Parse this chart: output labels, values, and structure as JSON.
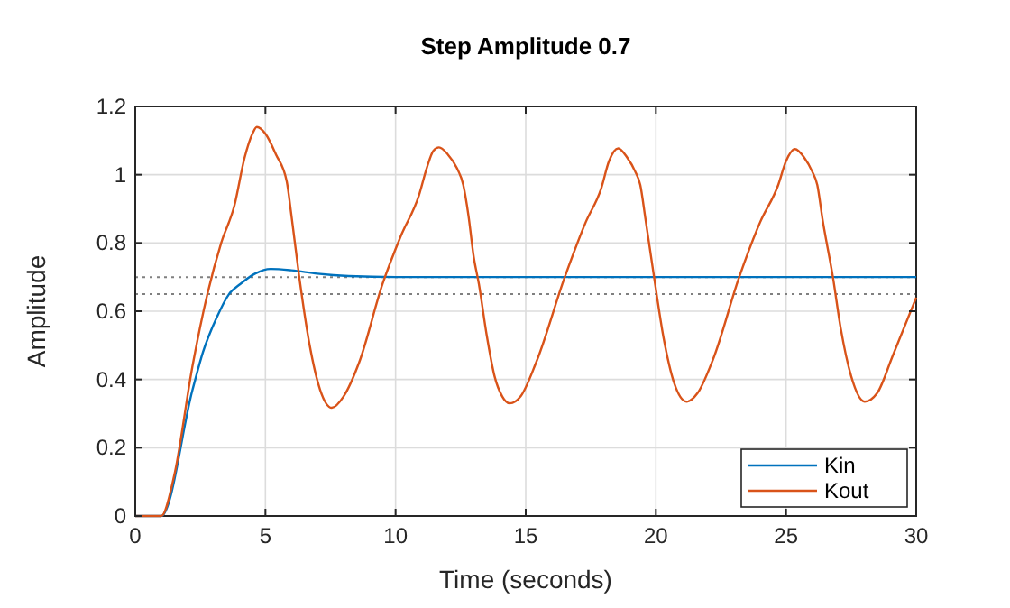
{
  "chart_data": {
    "type": "line",
    "title": "Step Amplitude 0.7",
    "xlabel": "Time (seconds)",
    "ylabel": "Amplitude",
    "xlim": [
      0,
      30
    ],
    "xticks": [
      0,
      5,
      10,
      15,
      20,
      25,
      30
    ],
    "ylim": [
      0,
      1.2
    ],
    "yticks": [
      0,
      0.2,
      0.4,
      0.6,
      0.8,
      1,
      1.2
    ],
    "grid": true,
    "legend": "bottom right",
    "line_style": "solid",
    "ref_lines": [
      {
        "axis": "y",
        "value": 0.7,
        "color": "#808080",
        "line_style": "dotted"
      },
      {
        "axis": "y",
        "value": 0.65,
        "color": "#808080",
        "line_style": "dotted"
      }
    ],
    "series": [
      {
        "name": "Kin",
        "color": "#0072bd",
        "x": [
          0,
          1,
          2.2,
          2.6,
          3.12,
          3.6,
          4.04,
          4.6,
          5.2,
          6,
          7,
          8.2,
          10,
          30
        ],
        "values": [
          0,
          0,
          0.37,
          0.48,
          0.58,
          0.65,
          0.68,
          0.71,
          0.724,
          0.72,
          0.71,
          0.703,
          0.7,
          0.7
        ]
      },
      {
        "name": "Kout",
        "color": "#d95319",
        "x": [
          0,
          1,
          1.5,
          2.2,
          2.77,
          3.3,
          3.81,
          4.2,
          4.5,
          4.67,
          5,
          5.4,
          5.82,
          6,
          6.3,
          6.7,
          7.1,
          7.55,
          8,
          8.6,
          9.5,
          10.2,
          10.9,
          11.2,
          11.45,
          11.67,
          12,
          12.35,
          12.6,
          12.8,
          13,
          13.2,
          13.5,
          13.8,
          14.1,
          14.39,
          14.8,
          15.4,
          16.5,
          17.3,
          17.9,
          18.2,
          18.55,
          18.9,
          19.2,
          19.4,
          19.6,
          19.93,
          20.3,
          20.7,
          21.18,
          21.6,
          22.2,
          23.2,
          24,
          24.7,
          25,
          25.34,
          25.7,
          26,
          26.2,
          26.4,
          26.8,
          27.1,
          27.5,
          28.02,
          28.5,
          29.1,
          30
        ],
        "values": [
          0,
          0,
          0.12,
          0.44,
          0.65,
          0.8,
          0.91,
          1.05,
          1.12,
          1.14,
          1.12,
          1.06,
          0.98,
          0.88,
          0.7,
          0.5,
          0.37,
          0.317,
          0.35,
          0.45,
          0.68,
          0.82,
          0.94,
          1.02,
          1.07,
          1.08,
          1.06,
          1.02,
          0.97,
          0.88,
          0.76,
          0.68,
          0.53,
          0.41,
          0.35,
          0.33,
          0.35,
          0.45,
          0.7,
          0.86,
          0.96,
          1.04,
          1.077,
          1.05,
          1.01,
          0.97,
          0.87,
          0.7,
          0.52,
          0.39,
          0.335,
          0.36,
          0.46,
          0.7,
          0.86,
          0.97,
          1.04,
          1.075,
          1.05,
          1.01,
          0.97,
          0.87,
          0.7,
          0.55,
          0.41,
          0.335,
          0.36,
          0.47,
          0.64
        ]
      }
    ]
  }
}
